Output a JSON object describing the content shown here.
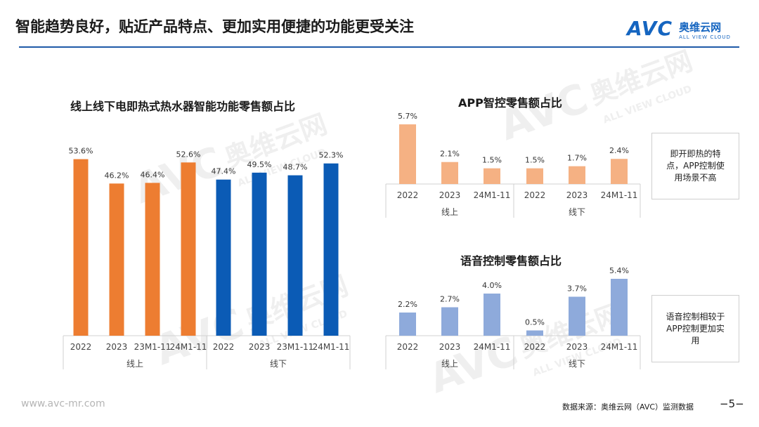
{
  "title": "智能趋势良好，贴近产品特点、更加实用便捷的功能更受关注",
  "logo": {
    "mark": "AVC",
    "cn": "奥维云网",
    "en": "ALL VIEW CLOUD"
  },
  "colors": {
    "accent": "#1e5aa8",
    "orange": "#ed7d31",
    "blue": "#0b5bb5",
    "light_orange": "#f5b183",
    "light_blue": "#8eaadb"
  },
  "chart_data": [
    {
      "type": "bar",
      "title": "线上线下电即热式热水器智能功能零售额占比",
      "groups": [
        "线上",
        "线下"
      ],
      "categories": [
        "2022",
        "2023",
        "23M1-11",
        "24M1-11",
        "2022",
        "2023",
        "23M1-11",
        "24M1-11"
      ],
      "values": [
        53.6,
        46.2,
        46.4,
        52.6,
        47.4,
        49.5,
        48.7,
        52.3
      ],
      "labels": [
        "53.6%",
        "46.2%",
        "46.4%",
        "52.6%",
        "47.4%",
        "49.5%",
        "48.7%",
        "52.3%"
      ],
      "unit": "%"
    },
    {
      "type": "bar",
      "title": "APP智控零售额占比",
      "groups": [
        "线上",
        "线下"
      ],
      "categories": [
        "2022",
        "2023",
        "24M1-11",
        "2022",
        "2023",
        "24M1-11"
      ],
      "values": [
        5.7,
        2.1,
        1.5,
        1.5,
        1.7,
        2.4
      ],
      "labels": [
        "5.7%",
        "2.1%",
        "1.5%",
        "1.5%",
        "1.7%",
        "2.4%"
      ],
      "unit": "%"
    },
    {
      "type": "bar",
      "title": "语音控制零售额占比",
      "groups": [
        "线上",
        "线下"
      ],
      "categories": [
        "2022",
        "2023",
        "24M1-11",
        "2022",
        "2023",
        "24M1-11"
      ],
      "values": [
        2.2,
        2.7,
        4.0,
        0.5,
        3.7,
        5.4
      ],
      "labels": [
        "2.2%",
        "2.7%",
        "4.0%",
        "0.5%",
        "3.7%",
        "5.4%"
      ],
      "unit": "%"
    }
  ],
  "notes": {
    "app": "即开即热的特点，APP控制使用场景不高",
    "voice": "语音控制相较于APP控制更加实用"
  },
  "footer": {
    "website": "www.avc-mr.com",
    "source": "数据来源：奥维云网（AVC）监测数据",
    "page": "−5−"
  }
}
